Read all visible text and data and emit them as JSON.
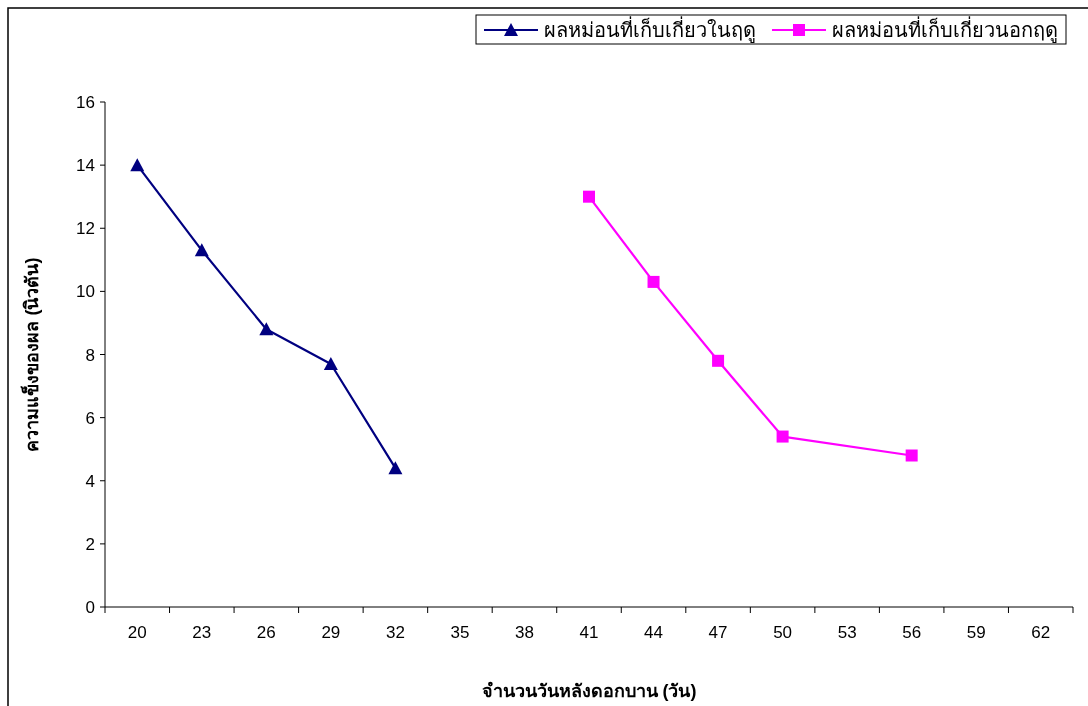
{
  "chart_data": {
    "type": "line",
    "xlabel": "จำนวนวันหลังดอกบาน (วัน)",
    "ylabel": "ความแข็งของผล (นิวตัน)",
    "categories": [
      "20",
      "23",
      "26",
      "29",
      "32",
      "35",
      "38",
      "41",
      "44",
      "47",
      "50",
      "53",
      "56",
      "59",
      "62"
    ],
    "series": [
      {
        "name": "ผลหม่อนที่เก็บเกี่ยวในฤดู",
        "color": "#000080",
        "marker": "triangle",
        "values": [
          14.0,
          11.3,
          8.8,
          7.7,
          4.4,
          null,
          null,
          null,
          null,
          null,
          null,
          null,
          null,
          null,
          null
        ]
      },
      {
        "name": "ผลหม่อนที่เก็บเกี่ยวนอกฤดู",
        "color": "#ff00ff",
        "marker": "square",
        "values": [
          null,
          null,
          null,
          null,
          null,
          null,
          null,
          13.0,
          10.3,
          7.8,
          5.4,
          null,
          4.8,
          null,
          null
        ]
      }
    ],
    "ylim": [
      0,
      16
    ],
    "yticks": [
      0,
      2,
      4,
      6,
      8,
      10,
      12,
      14,
      16
    ],
    "legend": "top right"
  }
}
